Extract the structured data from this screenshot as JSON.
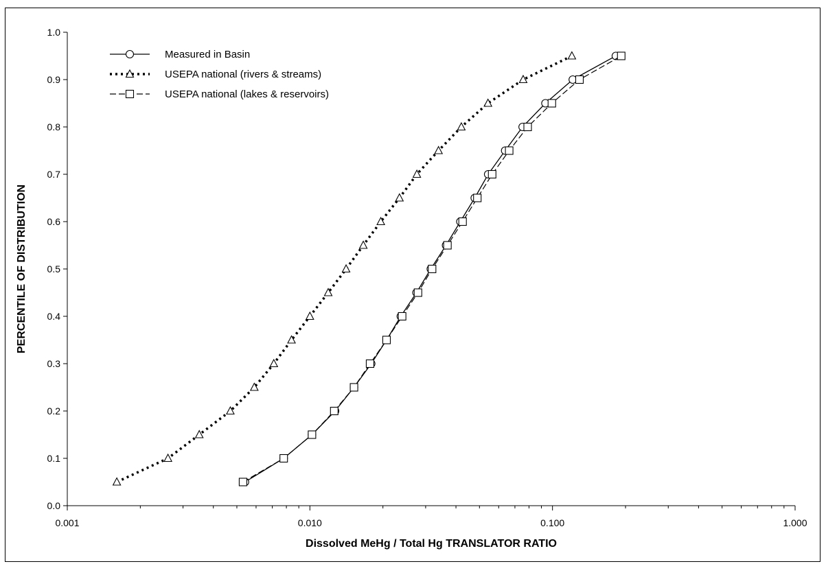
{
  "page": {
    "top_cropped_text": "",
    "colors": {
      "background": "#ffffff",
      "ink": "#000000"
    }
  },
  "chart_data": {
    "type": "line",
    "title": "",
    "xlabel": "Dissolved MeHg / Total Hg TRANSLATOR RATIO",
    "ylabel": "PERCENTILE OF DISTRIBUTION",
    "xscale": "log",
    "xlim": [
      0.001,
      1.0
    ],
    "ylim": [
      0.0,
      1.0
    ],
    "x_tick_labels": [
      "0.001",
      "0.010",
      "0.100",
      "1.000"
    ],
    "x_tick_values": [
      0.001,
      0.01,
      0.1,
      1.0
    ],
    "y_tick_labels": [
      "0.0",
      "0.1",
      "0.2",
      "0.3",
      "0.4",
      "0.5",
      "0.6",
      "0.7",
      "0.8",
      "0.9",
      "1.0"
    ],
    "y_tick_values": [
      0.0,
      0.1,
      0.2,
      0.3,
      0.4,
      0.5,
      0.6,
      0.7,
      0.8,
      0.9,
      1.0
    ],
    "grid": false,
    "legend_position": "top-left",
    "series": [
      {
        "name": "Measured in Basin",
        "line_style": "solid",
        "marker": "circle",
        "x": [
          0.0054,
          0.0078,
          0.0102,
          0.0127,
          0.0152,
          0.0179,
          0.0207,
          0.0237,
          0.0275,
          0.0315,
          0.0364,
          0.0417,
          0.0478,
          0.0543,
          0.0638,
          0.0753,
          0.0935,
          0.1212,
          0.1824
        ],
        "y": [
          0.05,
          0.1,
          0.15,
          0.2,
          0.25,
          0.3,
          0.35,
          0.4,
          0.45,
          0.5,
          0.55,
          0.6,
          0.65,
          0.7,
          0.75,
          0.8,
          0.85,
          0.9,
          0.95
        ]
      },
      {
        "name": "USEPA national (rivers & streams)",
        "line_style": "dotted",
        "marker": "triangle",
        "x": [
          0.0016,
          0.0026,
          0.0035,
          0.0047,
          0.0059,
          0.0071,
          0.0084,
          0.01,
          0.0119,
          0.0141,
          0.0166,
          0.0196,
          0.0234,
          0.0276,
          0.0339,
          0.0421,
          0.0542,
          0.0757,
          0.1202
        ],
        "y": [
          0.05,
          0.1,
          0.15,
          0.2,
          0.25,
          0.3,
          0.35,
          0.4,
          0.45,
          0.5,
          0.55,
          0.6,
          0.65,
          0.7,
          0.75,
          0.8,
          0.85,
          0.9,
          0.95
        ]
      },
      {
        "name": "USEPA national (lakes & reservoirs)",
        "line_style": "dashed",
        "marker": "square",
        "x": [
          0.0053,
          0.0078,
          0.0102,
          0.0126,
          0.0152,
          0.0177,
          0.0207,
          0.024,
          0.0279,
          0.0319,
          0.0369,
          0.0426,
          0.049,
          0.0564,
          0.0663,
          0.079,
          0.0994,
          0.1292,
          0.192
        ],
        "y": [
          0.05,
          0.1,
          0.15,
          0.2,
          0.25,
          0.3,
          0.35,
          0.4,
          0.45,
          0.5,
          0.55,
          0.6,
          0.65,
          0.7,
          0.75,
          0.8,
          0.85,
          0.9,
          0.95
        ]
      }
    ]
  }
}
